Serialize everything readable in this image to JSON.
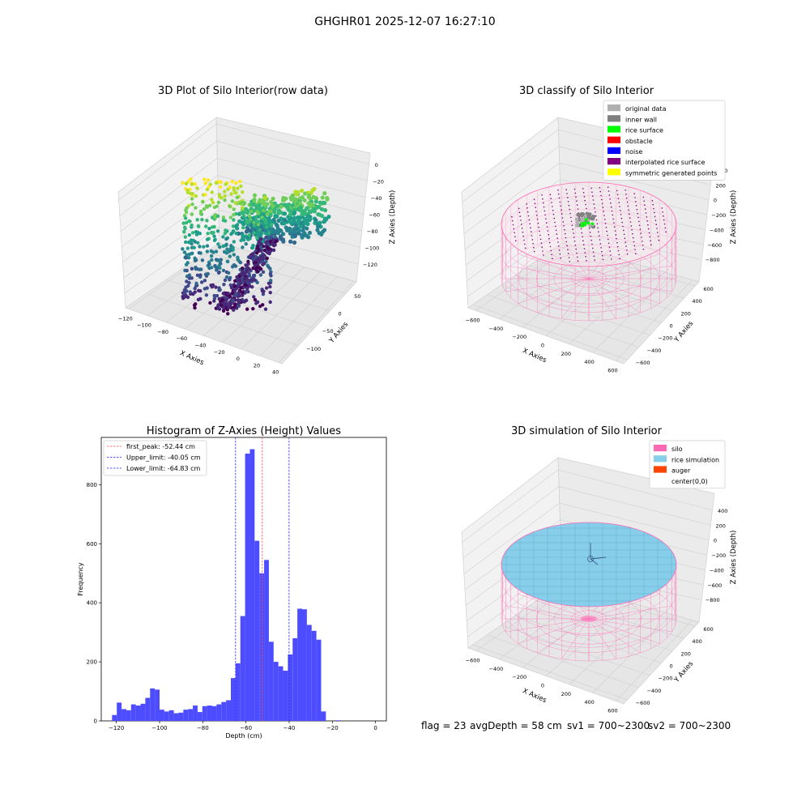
{
  "suptitle": "GHGHR01 2025-12-07 16:27:10",
  "status": {
    "flag": "flag = 23",
    "avg_depth": "avgDepth = 58 cm",
    "sv1": "sv1 = 700~2300",
    "sv2": "sv2 = 700~2300"
  },
  "colors": {
    "histogram": "#4d4dff",
    "first_peak_line": "#ff4d4d",
    "limit_lines": "#2a2aff",
    "silo_wire": "#ff69b4",
    "rice_simulation": "#87ceeb",
    "auger": "#ff4500",
    "pane": "#f2f2f2"
  },
  "chart_data": [
    {
      "type": "scatter",
      "projection": "3d",
      "title": "3D Plot of Silo Interior(row data)",
      "xlabel": "X Axies",
      "ylabel": "Y Axies",
      "zlabel": "Z Axies (Depth)",
      "xticks": [
        "−120",
        "−100",
        "−80",
        "−60",
        "−40",
        "−20",
        "0",
        "20",
        "40"
      ],
      "yticks": [
        "−100",
        "−50",
        "0",
        "50"
      ],
      "zticks": [
        "0",
        "−20",
        "−40",
        "−60",
        "−80",
        "−100",
        "−120"
      ],
      "colormap": "viridis"
    },
    {
      "type": "scatter",
      "projection": "3d",
      "title": "3D classify of Silo Interior",
      "xlabel": "X Axies",
      "ylabel": "Y Axies",
      "zlabel": "Z Axies (Depth)",
      "xticks": [
        "−600",
        "−400",
        "−200",
        "0",
        "200",
        "400",
        "600"
      ],
      "yticks": [
        "−600",
        "−400",
        "−200",
        "0",
        "200",
        "400",
        "600"
      ],
      "zticks": [
        "400",
        "200",
        "0",
        "−200",
        "−400",
        "−600",
        "−800"
      ],
      "legend": [
        {
          "label": "original data",
          "color": "#b0b0b0"
        },
        {
          "label": "inner wall",
          "color": "#808080"
        },
        {
          "label": "rice surface",
          "color": "#00ff00"
        },
        {
          "label": "obstacle",
          "color": "#ff0000"
        },
        {
          "label": "noise",
          "color": "#0000ff"
        },
        {
          "label": "interpolated rice surface",
          "color": "#800080"
        },
        {
          "label": "symmetric generated points",
          "color": "#ffff00"
        }
      ],
      "legend_loc": "upper right"
    },
    {
      "type": "bar",
      "title": "Histogram of Z-Axies (Height) Values",
      "xlabel": "Depth (cm)",
      "ylabel": "Frequency",
      "xlim": [
        -127,
        5
      ],
      "ylim": [
        0,
        960
      ],
      "xticks": [
        -120,
        -100,
        -80,
        -60,
        -40,
        -20,
        0
      ],
      "yticks": [
        0,
        200,
        400,
        600,
        800
      ],
      "bin_width": 2.2,
      "bin_start": -122,
      "values": [
        20,
        62,
        40,
        36,
        56,
        52,
        58,
        78,
        110,
        106,
        38,
        32,
        36,
        26,
        28,
        38,
        40,
        52,
        30,
        50,
        52,
        50,
        56,
        64,
        70,
        145,
        195,
        355,
        905,
        920,
        610,
        500,
        545,
        268,
        200,
        185,
        170,
        225,
        280,
        380,
        378,
        325,
        305,
        275,
        32,
        0,
        0,
        2
      ],
      "lines": [
        {
          "label": "first_peak: -52.44 cm",
          "x": -52.44,
          "style": "first_peak"
        },
        {
          "label": "Upper_limit: -40.05 cm",
          "x": -40.05,
          "style": "limit"
        },
        {
          "label": "Lower_limit: -64.83 cm",
          "x": -64.83,
          "style": "limit"
        }
      ],
      "legend_loc": "upper left"
    },
    {
      "type": "scatter",
      "projection": "3d",
      "title": "3D simulation of Silo Interior",
      "xlabel": "X Axies",
      "ylabel": "Y Axies",
      "zlabel": "Z Axies (Depth)",
      "xticks": [
        "−600",
        "−400",
        "−200",
        "0",
        "200",
        "400",
        "600"
      ],
      "yticks": [
        "−600",
        "−400",
        "−200",
        "0",
        "200",
        "400",
        "600"
      ],
      "zticks": [
        "400",
        "200",
        "0",
        "−200",
        "−400",
        "−600",
        "−800"
      ],
      "legend": [
        {
          "label": "silo",
          "color": "#ff69b4"
        },
        {
          "label": "rice simulation",
          "color": "#87ceeb"
        },
        {
          "label": "auger",
          "color": "#ff4500"
        },
        {
          "label": "center(0,0)",
          "color": ""
        }
      ],
      "legend_loc": "upper right"
    }
  ]
}
